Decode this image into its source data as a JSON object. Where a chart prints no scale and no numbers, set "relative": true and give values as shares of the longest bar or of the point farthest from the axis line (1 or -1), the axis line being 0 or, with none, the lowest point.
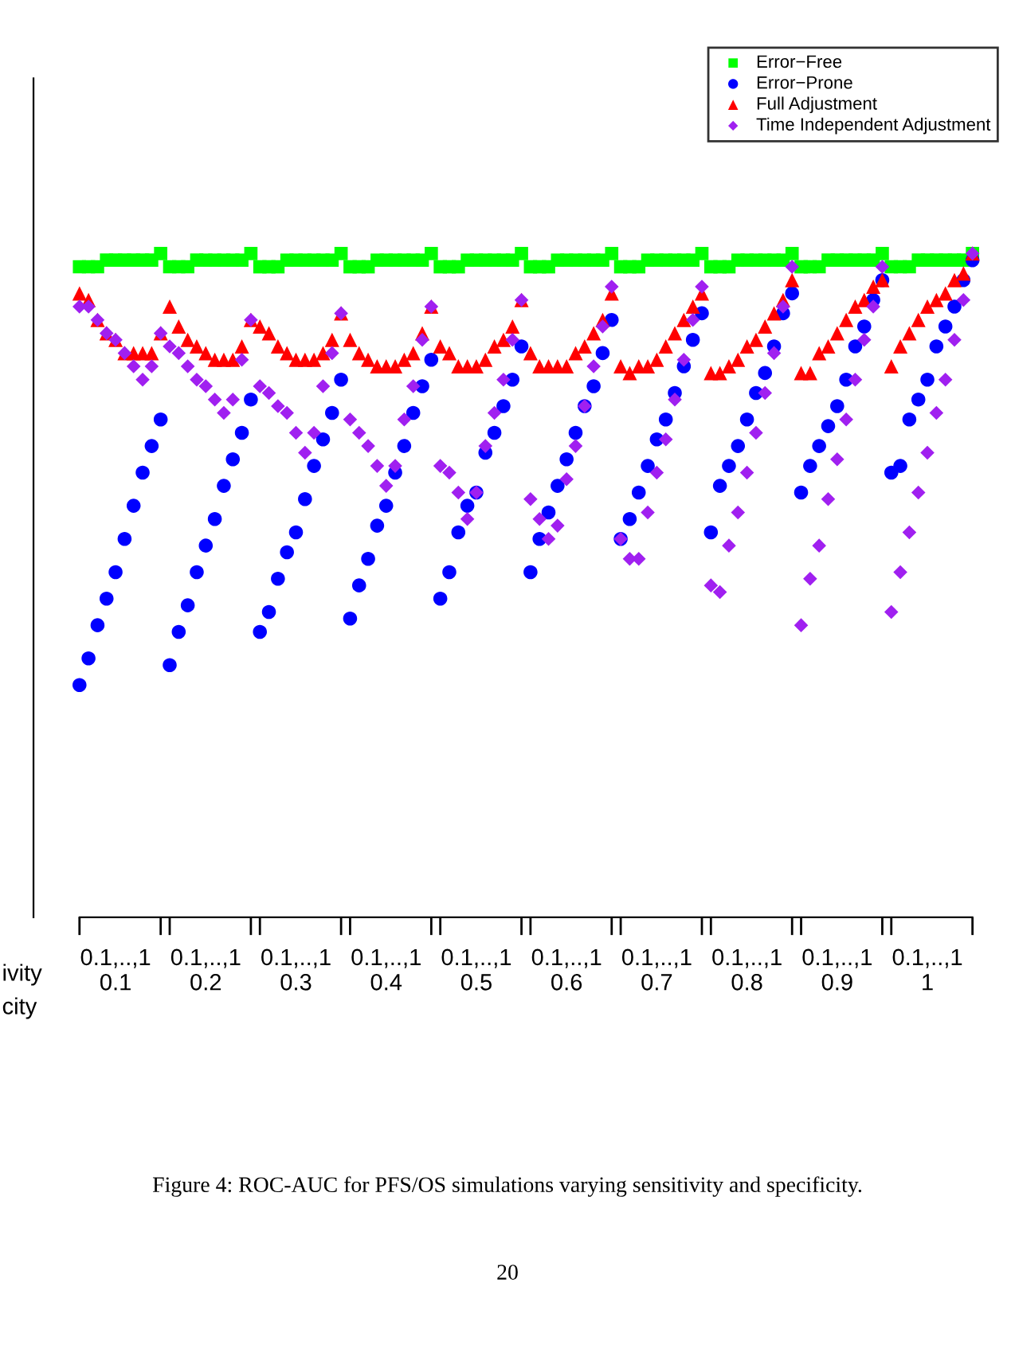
{
  "chart_data": {
    "type": "scatter",
    "relative": true,
    "categories": [
      null,
      null,
      null,
      null,
      "0.1,..,1\n0.1",
      null,
      null,
      null,
      null,
      null,
      null,
      null,
      null,
      null,
      "0.1,..,1\n0.2",
      null,
      null,
      null,
      null,
      null,
      null,
      null,
      null,
      null,
      "0.1,..,1\n0.3",
      null,
      null,
      null,
      null,
      null,
      null,
      null,
      null,
      null,
      "0.1,..,1\n0.4",
      null,
      null,
      null,
      null,
      null,
      null,
      null,
      null,
      null,
      "0.1,..,1\n0.5",
      null,
      null,
      null,
      null,
      null,
      null,
      null,
      null,
      null,
      "0.1,..,1\n0.6",
      null,
      null,
      null,
      null,
      null,
      null,
      null,
      null,
      null,
      "0.1,..,1\n0.7",
      null,
      null,
      null,
      null,
      null,
      null,
      null,
      null,
      null,
      "0.1,..,1\n0.8",
      null,
      null,
      null,
      null,
      null,
      null,
      null,
      null,
      null,
      "0.1,..,1\n0.9",
      null,
      null,
      null,
      null,
      null,
      null,
      null,
      null,
      null,
      "0.1,..,1\n1",
      null,
      null,
      null,
      null,
      null
    ],
    "legend": "top right",
    "grid": false,
    "series": [
      {
        "name": "Error−Free",
        "color": "#00ff00",
        "marker": "square",
        "values": [
          0.98,
          0.98,
          0.98,
          0.99,
          0.99,
          0.99,
          0.99,
          0.99,
          0.99,
          1.0,
          0.98,
          0.98,
          0.98,
          0.99,
          0.99,
          0.99,
          0.99,
          0.99,
          0.99,
          1.0,
          0.98,
          0.98,
          0.98,
          0.99,
          0.99,
          0.99,
          0.99,
          0.99,
          0.99,
          1.0,
          0.98,
          0.98,
          0.98,
          0.99,
          0.99,
          0.99,
          0.99,
          0.99,
          0.99,
          1.0,
          0.98,
          0.98,
          0.98,
          0.99,
          0.99,
          0.99,
          0.99,
          0.99,
          0.99,
          1.0,
          0.98,
          0.98,
          0.98,
          0.99,
          0.99,
          0.99,
          0.99,
          0.99,
          0.99,
          1.0,
          0.98,
          0.98,
          0.98,
          0.99,
          0.99,
          0.99,
          0.99,
          0.99,
          0.99,
          1.0,
          0.98,
          0.98,
          0.98,
          0.99,
          0.99,
          0.99,
          0.99,
          0.99,
          0.99,
          1.0,
          0.98,
          0.98,
          0.98,
          0.99,
          0.99,
          0.99,
          0.99,
          0.99,
          0.99,
          1.0,
          0.98,
          0.98,
          0.98,
          0.99,
          0.99,
          0.99,
          0.99,
          0.99,
          0.99,
          1.0
        ]
      },
      {
        "name": "Error−Prone",
        "color": "#0000ff",
        "marker": "circle",
        "values": [
          0.35,
          0.39,
          0.44,
          0.48,
          0.52,
          0.57,
          0.62,
          0.67,
          0.71,
          0.75,
          0.38,
          0.43,
          0.47,
          0.52,
          0.56,
          0.6,
          0.65,
          0.69,
          0.73,
          0.78,
          0.43,
          0.46,
          0.51,
          0.55,
          0.58,
          0.63,
          0.68,
          0.72,
          0.76,
          0.81,
          0.45,
          0.5,
          0.54,
          0.59,
          0.62,
          0.67,
          0.71,
          0.76,
          0.8,
          0.84,
          0.48,
          0.52,
          0.58,
          0.62,
          0.64,
          0.7,
          0.73,
          0.77,
          0.81,
          0.86,
          0.52,
          0.57,
          0.61,
          0.65,
          0.69,
          0.73,
          0.77,
          0.8,
          0.85,
          0.9,
          0.57,
          0.6,
          0.64,
          0.68,
          0.72,
          0.75,
          0.79,
          0.83,
          0.87,
          0.91,
          0.58,
          0.65,
          0.68,
          0.71,
          0.75,
          0.79,
          0.82,
          0.86,
          0.91,
          0.94,
          0.64,
          0.68,
          0.71,
          0.74,
          0.77,
          0.81,
          0.86,
          0.89,
          0.93,
          0.96,
          0.67,
          0.68,
          0.75,
          0.78,
          0.81,
          0.86,
          0.89,
          0.92,
          0.96,
          0.99
        ]
      },
      {
        "name": "Full Adjustment",
        "color": "#ff0000",
        "marker": "triangle",
        "values": [
          0.94,
          0.93,
          0.9,
          0.88,
          0.87,
          0.85,
          0.85,
          0.85,
          0.85,
          0.88,
          0.92,
          0.89,
          0.87,
          0.86,
          0.85,
          0.84,
          0.84,
          0.84,
          0.86,
          0.9,
          0.89,
          0.88,
          0.86,
          0.85,
          0.84,
          0.84,
          0.84,
          0.85,
          0.87,
          0.91,
          0.87,
          0.85,
          0.84,
          0.83,
          0.83,
          0.83,
          0.84,
          0.85,
          0.88,
          0.92,
          0.86,
          0.85,
          0.83,
          0.83,
          0.83,
          0.84,
          0.86,
          0.87,
          0.89,
          0.93,
          0.85,
          0.83,
          0.83,
          0.83,
          0.83,
          0.85,
          0.86,
          0.88,
          0.9,
          0.94,
          0.83,
          0.82,
          0.83,
          0.83,
          0.84,
          0.86,
          0.88,
          0.9,
          0.92,
          0.94,
          0.82,
          0.82,
          0.83,
          0.84,
          0.86,
          0.87,
          0.89,
          0.91,
          0.93,
          0.96,
          0.82,
          0.82,
          0.85,
          0.86,
          0.88,
          0.9,
          0.92,
          0.93,
          0.95,
          0.96,
          0.83,
          0.86,
          0.88,
          0.9,
          0.92,
          0.93,
          0.94,
          0.96,
          0.97,
          1.0
        ]
      },
      {
        "name": "Time Independent Adjustment",
        "color": "#a020f0",
        "marker": "diamond",
        "values": [
          0.92,
          0.92,
          0.9,
          0.88,
          0.87,
          0.85,
          0.83,
          0.81,
          0.83,
          0.88,
          0.86,
          0.85,
          0.83,
          0.81,
          0.8,
          0.78,
          0.76,
          0.78,
          0.84,
          0.9,
          0.8,
          0.79,
          0.77,
          0.76,
          0.73,
          0.7,
          0.73,
          0.8,
          0.85,
          0.91,
          0.75,
          0.73,
          0.71,
          0.68,
          0.65,
          0.68,
          0.75,
          0.8,
          0.87,
          0.92,
          0.68,
          0.67,
          0.64,
          0.6,
          0.64,
          0.71,
          0.76,
          0.81,
          0.87,
          0.93,
          0.63,
          0.6,
          0.57,
          0.59,
          0.66,
          0.71,
          0.77,
          0.83,
          0.89,
          0.95,
          0.57,
          0.54,
          0.54,
          0.61,
          0.67,
          0.72,
          0.78,
          0.84,
          0.9,
          0.95,
          0.5,
          0.49,
          0.56,
          0.61,
          0.67,
          0.73,
          0.79,
          0.85,
          0.92,
          0.98,
          0.44,
          0.51,
          0.56,
          0.63,
          0.69,
          0.75,
          0.81,
          0.87,
          0.92,
          0.98,
          0.46,
          0.52,
          0.58,
          0.64,
          0.7,
          0.76,
          0.81,
          0.87,
          0.93,
          1.0
        ]
      }
    ],
    "annotations": [
      "ivity",
      "city",
      "Figure 4: ROC-AUC for PFS/OS simulations varying sensitivity and specificity.",
      "20"
    ]
  }
}
